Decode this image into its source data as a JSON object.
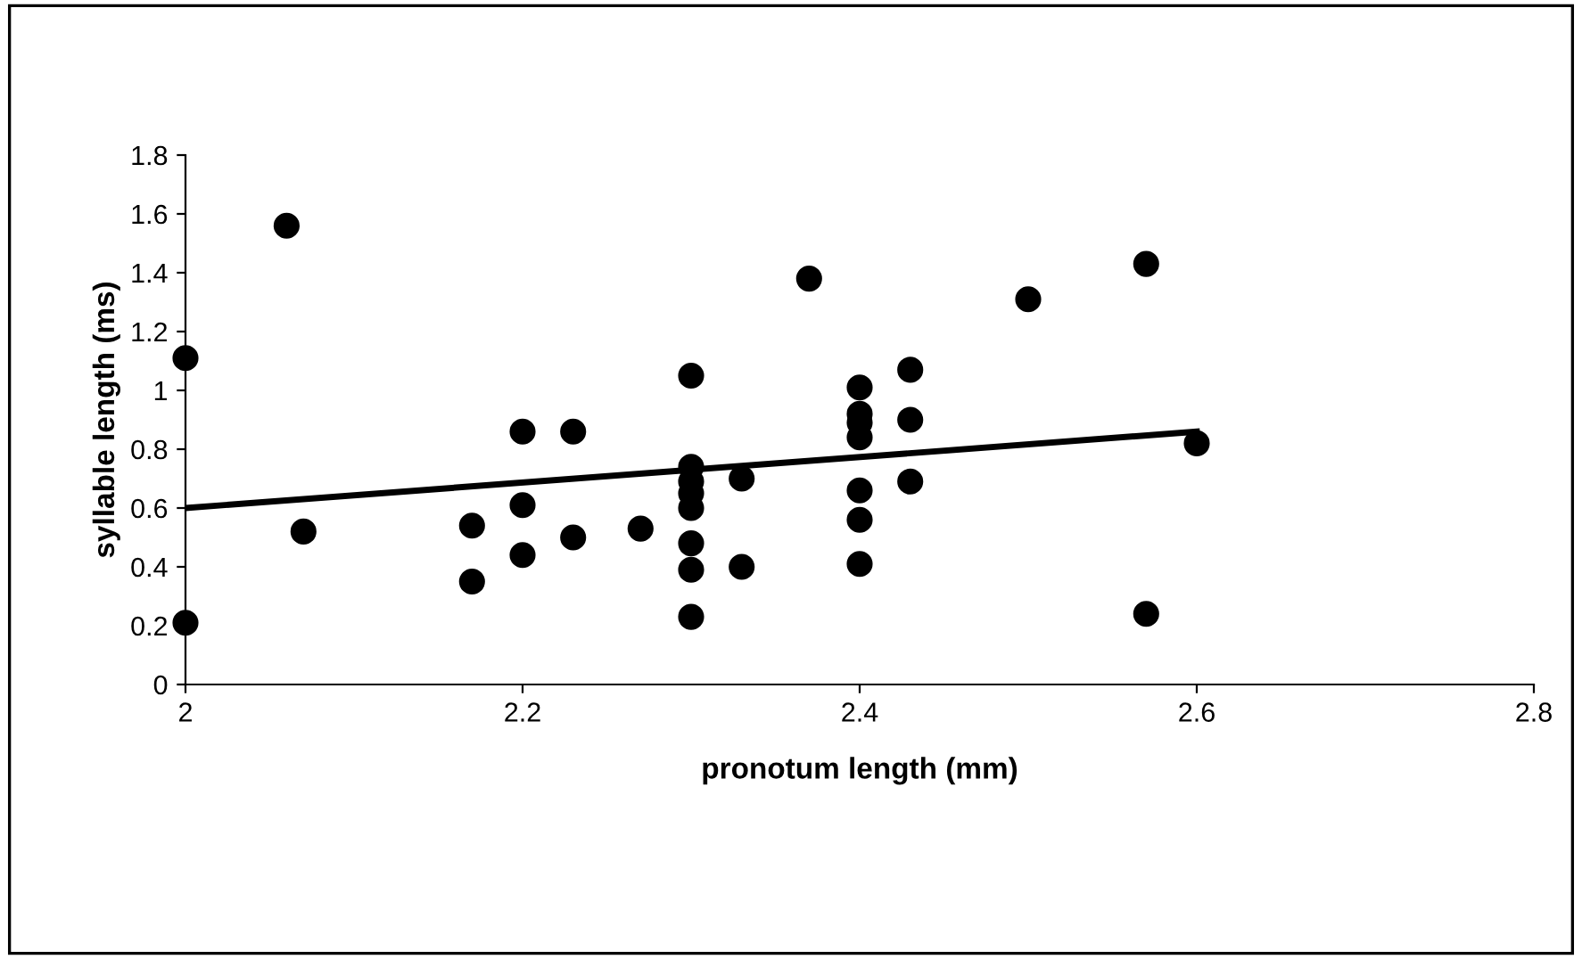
{
  "chart_data": {
    "type": "scatter",
    "xlabel": "pronotum length (mm)",
    "ylabel": "syllable length (ms)",
    "xlim": [
      2,
      2.8
    ],
    "xticks": [
      2,
      2.2,
      2.4,
      2.6,
      2.8
    ],
    "ylim": [
      0,
      1.8
    ],
    "yticks": [
      0,
      0.2,
      0.4,
      0.6,
      0.8,
      1,
      1.2,
      1.4,
      1.6,
      1.8
    ],
    "grid": false,
    "legend": false,
    "series": [
      {
        "marker": "circle",
        "color": "#000000",
        "x": [
          2,
          2,
          2.06,
          2.07,
          2.17,
          2.17,
          2.2,
          2.2,
          2.2,
          2.23,
          2.23,
          2.27,
          2.3,
          2.3,
          2.3,
          2.3,
          2.3,
          2.3,
          2.3,
          2.3,
          2.33,
          2.33,
          2.37,
          2.4,
          2.4,
          2.4,
          2.4,
          2.4,
          2.4,
          2.4,
          2.43,
          2.43,
          2.43,
          2.5,
          2.57,
          2.57,
          2.6
        ],
        "values": [
          1.11,
          0.21,
          1.56,
          0.52,
          0.54,
          0.35,
          0.86,
          0.61,
          0.44,
          0.86,
          0.5,
          0.53,
          1.05,
          0.74,
          0.69,
          0.65,
          0.6,
          0.48,
          0.39,
          0.23,
          0.7,
          0.4,
          1.38,
          1.01,
          0.92,
          0.89,
          0.84,
          0.66,
          0.56,
          0.41,
          1.07,
          0.9,
          0.69,
          1.31,
          1.43,
          0.24,
          0.82
        ]
      },
      {
        "type": "line",
        "color": "#000000",
        "x": [
          2,
          2.6
        ],
        "values": [
          0.6,
          0.86
        ]
      }
    ]
  }
}
